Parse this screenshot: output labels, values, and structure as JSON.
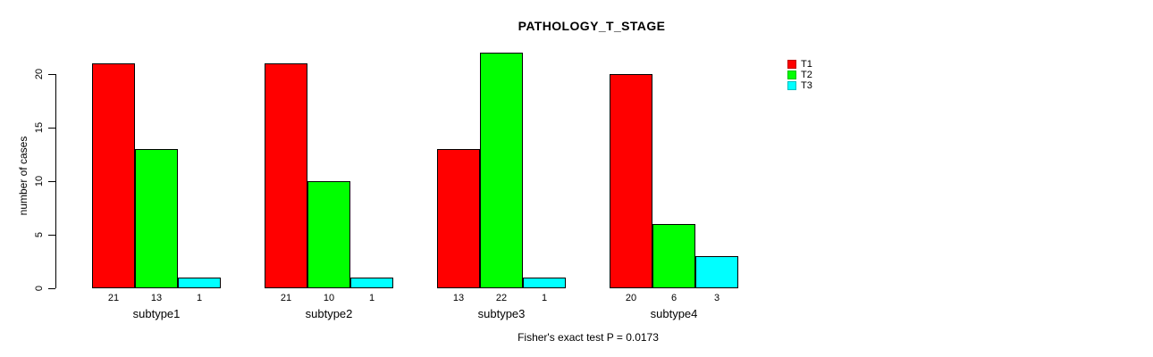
{
  "title": "PATHOLOGY_T_STAGE",
  "footer": "Fisher's exact test P = 0.0173",
  "y_axis": {
    "label": "number of cases",
    "ticks": [
      0,
      5,
      10,
      15,
      20
    ]
  },
  "legend": {
    "position": "right",
    "entries": [
      {
        "label": "T1",
        "color": "#ff0000"
      },
      {
        "label": "T2",
        "color": "#00ff00"
      },
      {
        "label": "T3",
        "color": "#00ffff"
      }
    ]
  },
  "chart_data": {
    "type": "bar",
    "grouped": true,
    "categories": [
      "subtype1",
      "subtype2",
      "subtype3",
      "subtype4"
    ],
    "series": [
      {
        "name": "T1",
        "color": "#ff0000",
        "values": [
          21,
          21,
          13,
          20
        ]
      },
      {
        "name": "T2",
        "color": "#00ff00",
        "values": [
          13,
          10,
          22,
          6
        ]
      },
      {
        "name": "T3",
        "color": "#00ffff",
        "values": [
          1,
          1,
          1,
          3
        ]
      }
    ],
    "bar_value_labels": [
      [
        "21",
        "13",
        "1"
      ],
      [
        "21",
        "10",
        "1"
      ],
      [
        "13",
        "22",
        "1"
      ],
      [
        "20",
        "6",
        "3"
      ]
    ],
    "title": "PATHOLOGY_T_STAGE",
    "xlabel": "",
    "ylabel": "number of cases",
    "ylim": [
      0,
      22
    ],
    "yticks": [
      0,
      5,
      10,
      15,
      20
    ],
    "grid": false,
    "legend_position": "right",
    "annotation": "Fisher's exact test P = 0.0173"
  }
}
